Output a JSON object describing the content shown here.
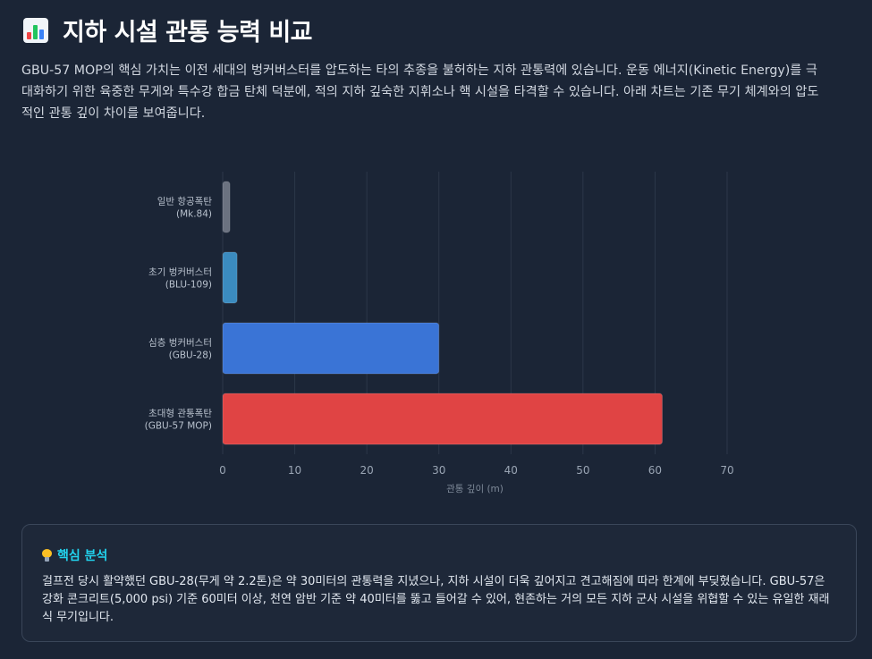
{
  "header": {
    "title": "지하 시설 관통 능력 비교",
    "icon": "bar-chart-icon"
  },
  "intro": "GBU-57 MOP의 핵심 가치는 이전 세대의 벙커버스터를 압도하는 타의 추종을 불허하는 지하 관통력에 있습니다. 운동 에너지(Kinetic Energy)를 극대화하기 위한 육중한 무게와 특수강 합금 탄체 덕분에, 적의 지하 깊숙한 지휘소나 핵 시설을 타격할 수 있습니다. 아래 차트는 기존 무기 체계와의 압도적인 관통 깊이 차이를 보여줍니다.",
  "chart_data": {
    "type": "bar",
    "orientation": "horizontal",
    "categories": [
      [
        "일반 항공폭탄",
        "(Mk.84)"
      ],
      [
        "초기 벙커버스터",
        "(BLU-109)"
      ],
      [
        "심층 벙커버스터",
        "(GBU-28)"
      ],
      [
        "초대형 관통폭탄",
        "(GBU-57 MOP)"
      ]
    ],
    "values": [
      1,
      2,
      30,
      61
    ],
    "colors": [
      "#6b7280",
      "#3b8bbf",
      "#3a74d6",
      "#e04444"
    ],
    "xlabel": "관통 깊이 (m)",
    "ylabel": "",
    "xlim": [
      0,
      70
    ],
    "xticks": [
      0,
      10,
      20,
      30,
      40,
      50,
      60,
      70
    ],
    "grid": true,
    "legend": "none"
  },
  "analysis": {
    "icon": "lightbulb-icon",
    "title": "핵심 분석",
    "body": "걸프전 당시 활약했던 GBU-28(무게 약 2.2톤)은 약 30미터의 관통력을 지녔으나, 지하 시설이 더욱 깊어지고 견고해짐에 따라 한계에 부딪혔습니다. GBU-57은 강화 콘크리트(5,000 psi) 기준 60미터 이상, 천연 암반 기준 약 40미터를 뚫고 들어갈 수 있어, 현존하는 거의 모든 지하 군사 시설을 위협할 수 있는 유일한 재래식 무기입니다."
  }
}
